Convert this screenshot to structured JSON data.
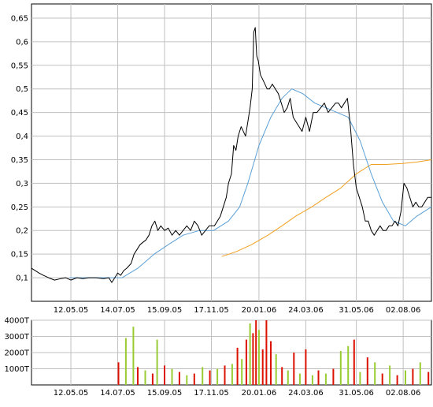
{
  "chart_data": [
    {
      "type": "line",
      "panel": "price",
      "x_ticks": [
        "12.05.05",
        "14.07.05",
        "15.09.05",
        "17.11.05",
        "20.01.06",
        "24.03.06",
        "31.05.06",
        "02.08.06"
      ],
      "y_ticks": [
        "0,1",
        "0,15",
        "0,2",
        "0,25",
        "0,3",
        "0,35",
        "0,4",
        "0,45",
        "0,5",
        "0,55",
        "0,6",
        "0,65"
      ],
      "ylim": [
        0.05,
        0.68
      ],
      "xlim": [
        "2005-03-20",
        "2006-09-09"
      ],
      "grid": true,
      "colors": {
        "price": "#000000",
        "ma_short": "#5a9fd6",
        "ma_long": "#f0a020",
        "grid": "#c0c0c0"
      },
      "series": [
        {
          "key": "price",
          "x": [
            "2005-03-20",
            "2005-03-25",
            "2005-03-30",
            "2005-04-05",
            "2005-04-12",
            "2005-04-20",
            "2005-04-28",
            "2005-05-05",
            "2005-05-12",
            "2005-05-20",
            "2005-05-28",
            "2005-06-05",
            "2005-06-15",
            "2005-06-25",
            "2005-07-02",
            "2005-07-06",
            "2005-07-10",
            "2005-07-14",
            "2005-07-18",
            "2005-07-22",
            "2005-07-26",
            "2005-08-01",
            "2005-08-05",
            "2005-08-09",
            "2005-08-13",
            "2005-08-17",
            "2005-08-21",
            "2005-08-25",
            "2005-08-29",
            "2005-09-02",
            "2005-09-06",
            "2005-09-10",
            "2005-09-15",
            "2005-09-20",
            "2005-09-25",
            "2005-09-30",
            "2005-10-05",
            "2005-10-10",
            "2005-10-15",
            "2005-10-20",
            "2005-10-25",
            "2005-10-30",
            "2005-11-04",
            "2005-11-09",
            "2005-11-14",
            "2005-11-17",
            "2005-11-21",
            "2005-11-25",
            "2005-11-29",
            "2005-12-03",
            "2005-12-07",
            "2005-12-10",
            "2005-12-14",
            "2005-12-17",
            "2005-12-20",
            "2005-12-23",
            "2005-12-27",
            "2005-12-30",
            "2006-01-02",
            "2006-01-05",
            "2006-01-08",
            "2006-01-11",
            "2006-01-13",
            "2006-01-15",
            "2006-01-17",
            "2006-01-19",
            "2006-01-22",
            "2006-01-25",
            "2006-01-28",
            "2006-01-31",
            "2006-02-03",
            "2006-02-07",
            "2006-02-11",
            "2006-02-15",
            "2006-02-19",
            "2006-02-23",
            "2006-02-27",
            "2006-03-03",
            "2006-03-07",
            "2006-03-11",
            "2006-03-15",
            "2006-03-19",
            "2006-03-24",
            "2006-03-29",
            "2006-04-03",
            "2006-04-08",
            "2006-04-13",
            "2006-04-18",
            "2006-04-23",
            "2006-04-28",
            "2006-05-03",
            "2006-05-07",
            "2006-05-11",
            "2006-05-15",
            "2006-05-19",
            "2006-05-23",
            "2006-05-27",
            "2006-05-31",
            "2006-06-04",
            "2006-06-08",
            "2006-06-12",
            "2006-06-16",
            "2006-06-20",
            "2006-06-24",
            "2006-06-28",
            "2006-07-02",
            "2006-07-06",
            "2006-07-10",
            "2006-07-14",
            "2006-07-18",
            "2006-07-22",
            "2006-07-26",
            "2006-07-30",
            "2006-08-03",
            "2006-08-07",
            "2006-08-11",
            "2006-08-15",
            "2006-08-19",
            "2006-08-23",
            "2006-08-27",
            "2006-08-31",
            "2006-09-04",
            "2006-09-09"
          ],
          "values": [
            0.12,
            0.115,
            0.11,
            0.105,
            0.1,
            0.095,
            0.098,
            0.1,
            0.095,
            0.1,
            0.098,
            0.1,
            0.1,
            0.098,
            0.1,
            0.09,
            0.1,
            0.11,
            0.105,
            0.115,
            0.12,
            0.13,
            0.15,
            0.16,
            0.17,
            0.175,
            0.18,
            0.19,
            0.21,
            0.22,
            0.2,
            0.21,
            0.2,
            0.205,
            0.19,
            0.2,
            0.19,
            0.2,
            0.21,
            0.2,
            0.22,
            0.21,
            0.19,
            0.2,
            0.21,
            0.21,
            0.21,
            0.22,
            0.23,
            0.25,
            0.27,
            0.3,
            0.32,
            0.38,
            0.37,
            0.4,
            0.42,
            0.41,
            0.4,
            0.43,
            0.46,
            0.5,
            0.62,
            0.63,
            0.57,
            0.56,
            0.53,
            0.52,
            0.51,
            0.5,
            0.5,
            0.51,
            0.5,
            0.49,
            0.47,
            0.45,
            0.46,
            0.48,
            0.44,
            0.43,
            0.42,
            0.41,
            0.44,
            0.41,
            0.45,
            0.45,
            0.46,
            0.47,
            0.45,
            0.46,
            0.47,
            0.47,
            0.46,
            0.47,
            0.48,
            0.42,
            0.34,
            0.29,
            0.27,
            0.25,
            0.22,
            0.22,
            0.2,
            0.19,
            0.2,
            0.21,
            0.2,
            0.2,
            0.21,
            0.21,
            0.22,
            0.21,
            0.24,
            0.3,
            0.29,
            0.27,
            0.25,
            0.26,
            0.25,
            0.25,
            0.26,
            0.27,
            0.27
          ]
        },
        {
          "key": "ma_short",
          "x": [
            "2005-05-10",
            "2005-06-01",
            "2005-07-01",
            "2005-07-20",
            "2005-08-10",
            "2005-09-01",
            "2005-09-20",
            "2005-10-10",
            "2005-11-01",
            "2005-11-20",
            "2005-12-10",
            "2005-12-25",
            "2006-01-05",
            "2006-01-20",
            "2006-02-05",
            "2006-02-20",
            "2006-03-05",
            "2006-03-20",
            "2006-04-05",
            "2006-04-20",
            "2006-05-05",
            "2006-05-20",
            "2006-06-05",
            "2006-06-20",
            "2006-07-05",
            "2006-07-20",
            "2006-08-05",
            "2006-08-20",
            "2006-09-09"
          ],
          "values": [
            0.1,
            0.1,
            0.1,
            0.1,
            0.12,
            0.15,
            0.17,
            0.19,
            0.2,
            0.2,
            0.22,
            0.25,
            0.3,
            0.38,
            0.44,
            0.48,
            0.5,
            0.49,
            0.47,
            0.46,
            0.45,
            0.44,
            0.39,
            0.32,
            0.26,
            0.22,
            0.21,
            0.23,
            0.25
          ]
        },
        {
          "key": "ma_long",
          "x": [
            "2005-12-01",
            "2005-12-20",
            "2006-01-10",
            "2006-02-01",
            "2006-02-20",
            "2006-03-10",
            "2006-04-01",
            "2006-04-20",
            "2006-05-10",
            "2006-05-31",
            "2006-06-20",
            "2006-07-10",
            "2006-08-01",
            "2006-08-20",
            "2006-09-09"
          ],
          "values": [
            0.145,
            0.155,
            0.17,
            0.19,
            0.21,
            0.23,
            0.25,
            0.27,
            0.29,
            0.32,
            0.34,
            0.34,
            0.342,
            0.345,
            0.35
          ]
        }
      ]
    },
    {
      "type": "bar",
      "panel": "volume",
      "x_ticks": [
        "12.05.05",
        "14.07.05",
        "15.09.05",
        "17.11.05",
        "20.01.06",
        "24.03.06",
        "31.05.06",
        "02.08.06"
      ],
      "y_ticks": [
        "1000T",
        "2000T",
        "3000T",
        "4000T"
      ],
      "ylim": [
        0,
        4000
      ],
      "grid": true,
      "colors": {
        "up": "#99cc33",
        "down": "#dd1100"
      },
      "series": [
        {
          "key": "volume",
          "x": [
            "2005-07-15",
            "2005-07-25",
            "2005-08-04",
            "2005-08-10",
            "2005-08-20",
            "2005-08-30",
            "2005-09-05",
            "2005-09-15",
            "2005-09-25",
            "2005-10-05",
            "2005-10-15",
            "2005-10-25",
            "2005-11-05",
            "2005-11-15",
            "2005-11-25",
            "2005-12-05",
            "2005-12-15",
            "2005-12-22",
            "2005-12-28",
            "2006-01-03",
            "2006-01-08",
            "2006-01-12",
            "2006-01-16",
            "2006-01-20",
            "2006-01-25",
            "2006-01-30",
            "2006-02-05",
            "2006-02-12",
            "2006-02-20",
            "2006-02-28",
            "2006-03-08",
            "2006-03-16",
            "2006-03-24",
            "2006-04-02",
            "2006-04-10",
            "2006-04-20",
            "2006-04-30",
            "2006-05-10",
            "2006-05-20",
            "2006-05-28",
            "2006-06-05",
            "2006-06-15",
            "2006-06-25",
            "2006-07-05",
            "2006-07-15",
            "2006-07-25",
            "2006-08-05",
            "2006-08-15",
            "2006-08-25",
            "2006-09-05"
          ],
          "values": [
            1400,
            2900,
            3600,
            1100,
            900,
            700,
            2800,
            1200,
            1000,
            800,
            600,
            700,
            1100,
            900,
            1000,
            1200,
            1300,
            2300,
            1600,
            2800,
            3800,
            3200,
            4000,
            3400,
            2200,
            4000,
            2700,
            1900,
            1100,
            900,
            2000,
            700,
            2200,
            600,
            900,
            700,
            1000,
            2100,
            2400,
            2800,
            800,
            1700,
            1400,
            700,
            1200,
            600,
            900,
            1000,
            1400,
            800
          ],
          "direction": [
            "down",
            "up",
            "up",
            "down",
            "up",
            "down",
            "up",
            "down",
            "up",
            "down",
            "up",
            "down",
            "up",
            "down",
            "up",
            "down",
            "up",
            "down",
            "up",
            "down",
            "up",
            "down",
            "down",
            "up",
            "down",
            "down",
            "down",
            "up",
            "down",
            "up",
            "down",
            "up",
            "down",
            "up",
            "down",
            "up",
            "down",
            "up",
            "up",
            "down",
            "up",
            "down",
            "up",
            "down",
            "up",
            "down",
            "up",
            "down",
            "up",
            "down"
          ]
        }
      ]
    }
  ]
}
